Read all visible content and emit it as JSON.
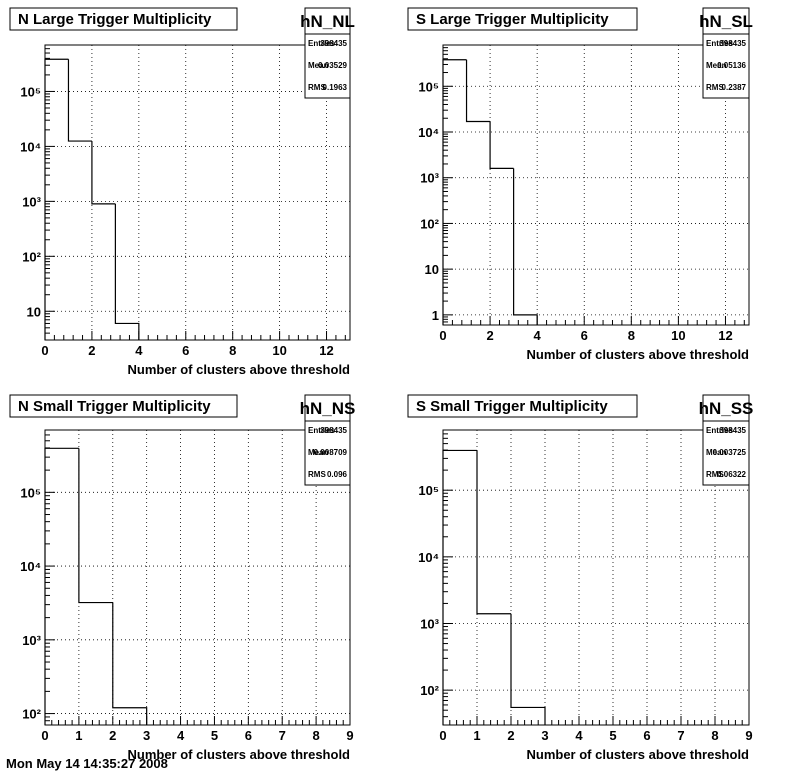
{
  "footer": {
    "text": "Mon May 14 14:35:27 2008"
  },
  "chart_data": [
    {
      "type": "bar",
      "histogram_name": "hN_NL",
      "title": "N Large Trigger Multiplicity",
      "xlabel": "Number of clusters above threshold",
      "ylabel": "",
      "y_scale": "log",
      "xlim": [
        0,
        13
      ],
      "ylim": [
        3,
        700000
      ],
      "x_ticks": [
        0,
        2,
        4,
        6,
        8,
        10,
        12
      ],
      "y_ticks": [
        10,
        100,
        1000,
        10000,
        100000
      ],
      "y_tick_labels": [
        "10",
        "10²",
        "10³",
        "10⁴",
        "10⁵"
      ],
      "grid": true,
      "bin_edges": [
        0,
        1,
        2,
        3,
        4
      ],
      "values": [
        385000,
        12500,
        900,
        6
      ],
      "stats": {
        "Entries": "398435",
        "Mean": "0.03529",
        "RMS": "0.1963"
      }
    },
    {
      "type": "bar",
      "histogram_name": "hN_SL",
      "title": "S Large Trigger Multiplicity",
      "xlabel": "Number of clusters above threshold",
      "ylabel": "",
      "y_scale": "log",
      "xlim": [
        0,
        13
      ],
      "ylim": [
        0.6,
        800000
      ],
      "x_ticks": [
        0,
        2,
        4,
        6,
        8,
        10,
        12
      ],
      "y_ticks": [
        1,
        10,
        100,
        1000,
        10000,
        100000
      ],
      "y_tick_labels": [
        "1",
        "10",
        "10²",
        "10³",
        "10⁴",
        "10⁵"
      ],
      "grid": true,
      "bin_edges": [
        0,
        1,
        2,
        3,
        4
      ],
      "values": [
        380000,
        17000,
        1600,
        1
      ],
      "stats": {
        "Entries": "398435",
        "Mean": "0.05136",
        "RMS": "0.2387"
      }
    },
    {
      "type": "bar",
      "histogram_name": "hN_NS",
      "title": "N Small Trigger Multiplicity",
      "xlabel": "Number of clusters above threshold",
      "ylabel": "",
      "y_scale": "log",
      "xlim": [
        0,
        9
      ],
      "ylim": [
        70,
        700000
      ],
      "x_ticks": [
        0,
        1,
        2,
        3,
        4,
        5,
        6,
        7,
        8,
        9
      ],
      "y_ticks": [
        100,
        1000,
        10000,
        100000
      ],
      "y_tick_labels": [
        "10²",
        "10³",
        "10⁴",
        "10⁵"
      ],
      "grid": true,
      "bin_edges": [
        0,
        1,
        2,
        3
      ],
      "values": [
        395000,
        3200,
        120
      ],
      "stats": {
        "Entries": "398435",
        "Mean": "0.008709",
        "RMS": "0.096"
      }
    },
    {
      "type": "bar",
      "histogram_name": "hN_SS",
      "title": "S Small Trigger Multiplicity",
      "xlabel": "Number of clusters above threshold",
      "ylabel": "",
      "y_scale": "log",
      "xlim": [
        0,
        9
      ],
      "ylim": [
        30,
        800000
      ],
      "x_ticks": [
        0,
        1,
        2,
        3,
        4,
        5,
        6,
        7,
        8,
        9
      ],
      "y_ticks": [
        100,
        1000,
        10000,
        100000
      ],
      "y_tick_labels": [
        "10²",
        "10³",
        "10⁴",
        "10⁵"
      ],
      "grid": true,
      "bin_edges": [
        0,
        1,
        2,
        3
      ],
      "values": [
        395000,
        1400,
        55
      ],
      "stats": {
        "Entries": "398435",
        "Mean": "0.003725",
        "RMS": "0.06322"
      }
    }
  ]
}
